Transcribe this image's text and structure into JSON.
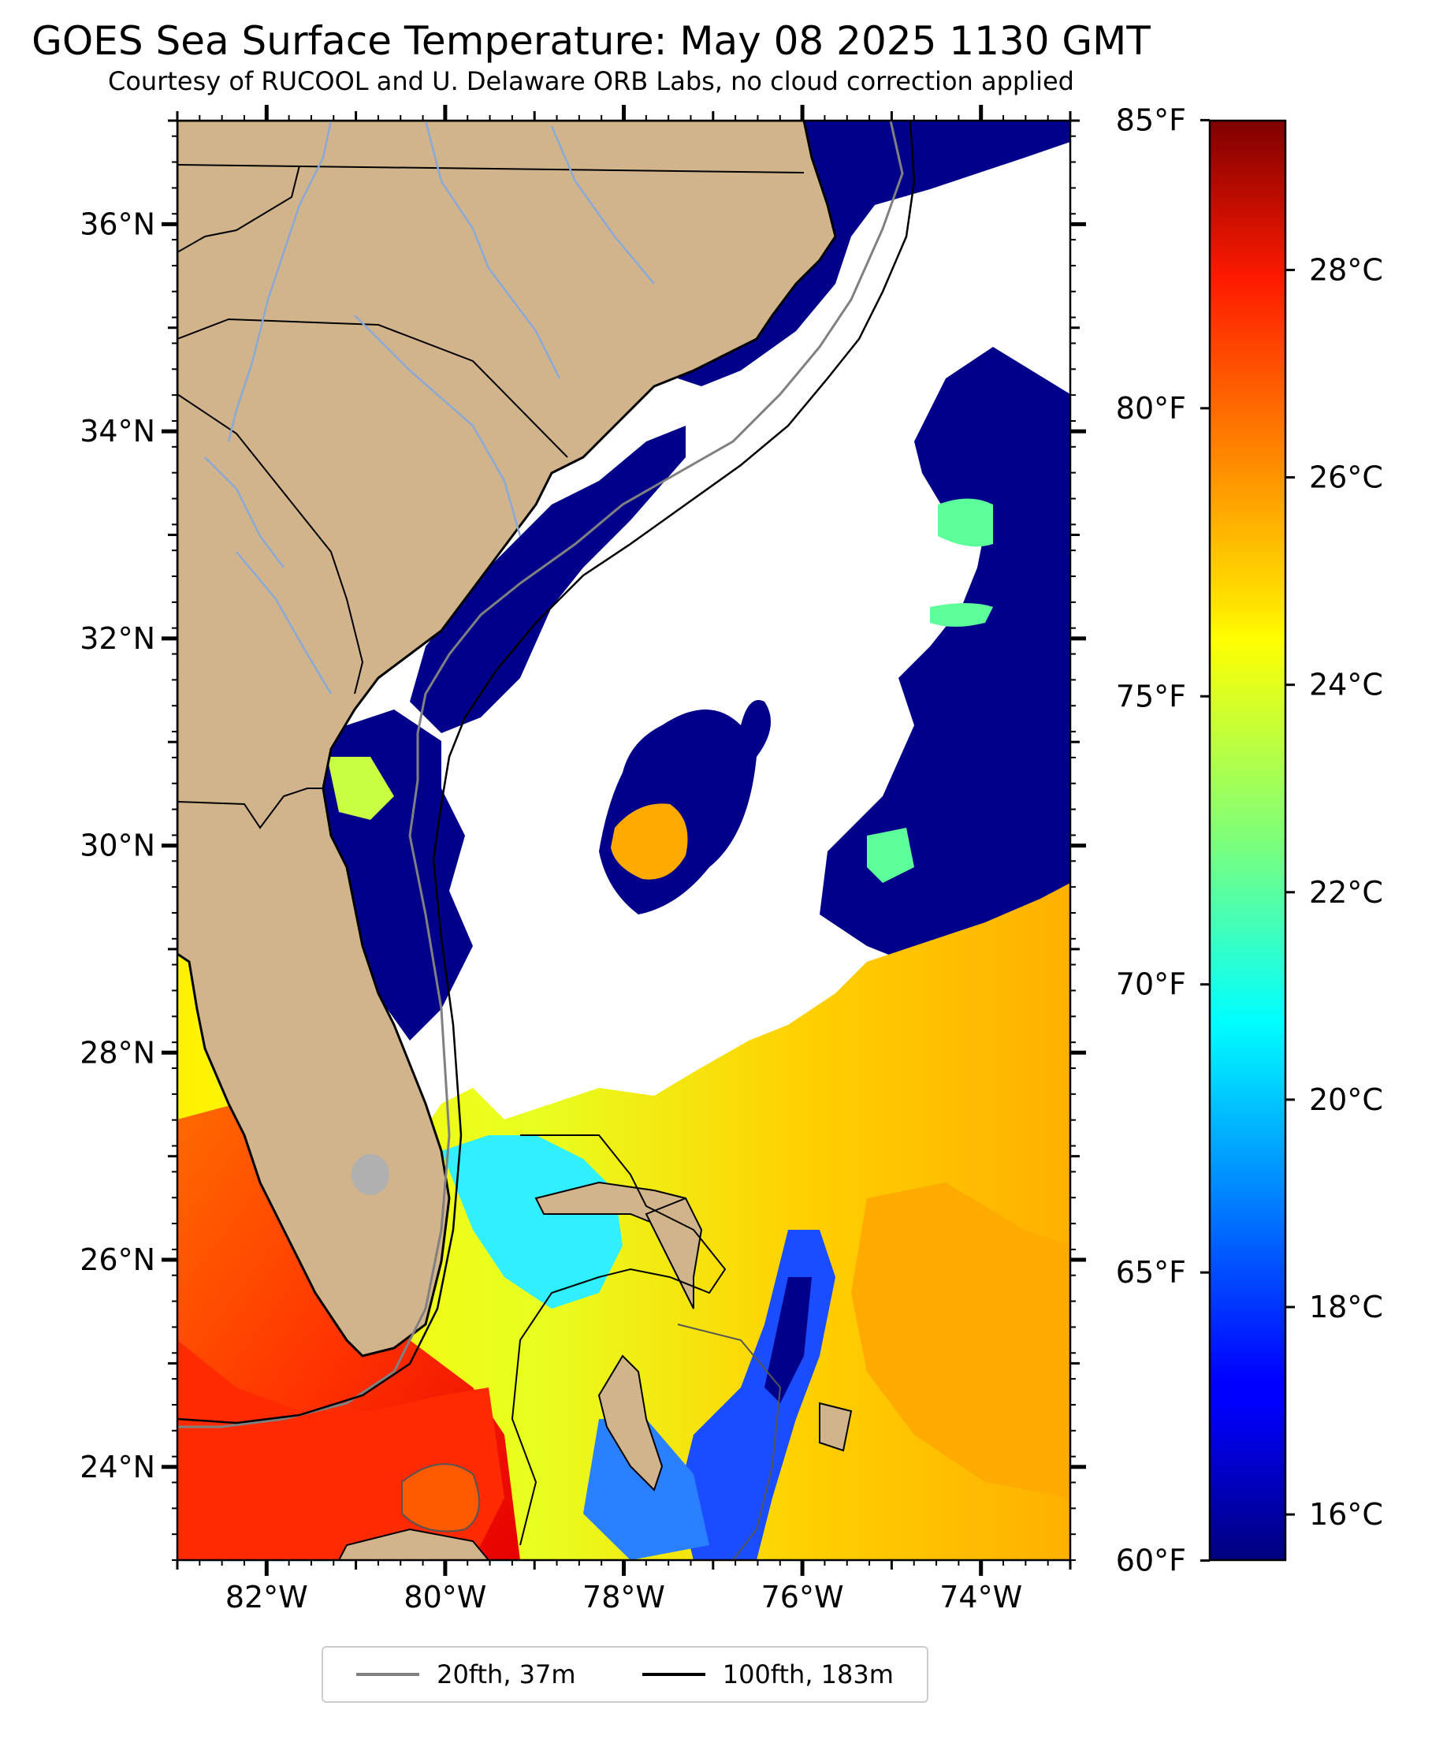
{
  "title": "GOES Sea Surface Temperature: May 08 2025 1130 GMT",
  "subtitle": "Courtesy of RUCOOL and U. Delaware ORB Labs, no cloud correction applied",
  "map": {
    "lon_range": [
      -83,
      -73
    ],
    "lat_range": [
      23.1,
      37
    ],
    "lat_ticks": [
      {
        "value": 36,
        "label": "36°N"
      },
      {
        "value": 34,
        "label": "34°N"
      },
      {
        "value": 32,
        "label": "32°N"
      },
      {
        "value": 30,
        "label": "30°N"
      },
      {
        "value": 28,
        "label": "28°N"
      },
      {
        "value": 26,
        "label": "26°N"
      },
      {
        "value": 24,
        "label": "24°N"
      }
    ],
    "lon_ticks": [
      {
        "value": -82,
        "label": "82°W"
      },
      {
        "value": -80,
        "label": "80°W"
      },
      {
        "value": -78,
        "label": "78°W"
      },
      {
        "value": -76,
        "label": "76°W"
      },
      {
        "value": -74,
        "label": "74°W"
      }
    ],
    "colors": {
      "land": "#d2b48c",
      "cloud": "#ffffff",
      "cold": "#00008b",
      "warm": "#ff4a00",
      "river": "#8aa9d6"
    }
  },
  "colorbar": {
    "colormap": "jet",
    "range_c": [
      15.56,
      29.44
    ],
    "celsius_ticks": [
      {
        "value": 16,
        "label": "16°C"
      },
      {
        "value": 18,
        "label": "18°C"
      },
      {
        "value": 20,
        "label": "20°C"
      },
      {
        "value": 22,
        "label": "22°C"
      },
      {
        "value": 24,
        "label": "24°C"
      },
      {
        "value": 26,
        "label": "26°C"
      },
      {
        "value": 28,
        "label": "28°C"
      }
    ],
    "fahrenheit_ticks": [
      {
        "value": 60,
        "label": "60°F"
      },
      {
        "value": 65,
        "label": "65°F"
      },
      {
        "value": 70,
        "label": "70°F"
      },
      {
        "value": 75,
        "label": "75°F"
      },
      {
        "value": 80,
        "label": "80°F"
      },
      {
        "value": 85,
        "label": "85°F"
      }
    ]
  },
  "legend": [
    {
      "label": "20fth, 37m",
      "color": "#808080"
    },
    {
      "label": "100fth, 183m",
      "color": "#000000"
    }
  ]
}
